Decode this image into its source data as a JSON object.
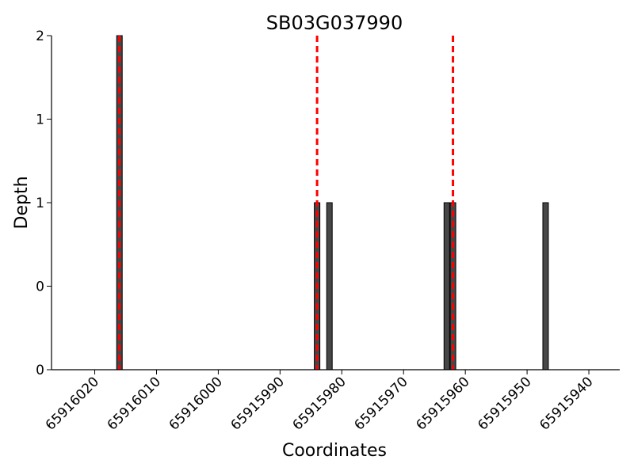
{
  "chart_data": {
    "type": "bar",
    "title": "SB03G037990",
    "xlabel": "Coordinates",
    "ylabel": "Depth",
    "x_reversed": true,
    "xlim": [
      65916027,
      65915935
    ],
    "ylim": [
      0,
      2
    ],
    "x_ticks": [
      65916020,
      65916010,
      65916000,
      65915990,
      65915980,
      65915970,
      65915960,
      65915950,
      65915940
    ],
    "y_ticks": [
      {
        "value": 0,
        "label": "0"
      },
      {
        "value": 0.5,
        "label": "0"
      },
      {
        "value": 1,
        "label": "1"
      },
      {
        "value": 1.5,
        "label": "1"
      },
      {
        "value": 2,
        "label": "2"
      }
    ],
    "series": [
      {
        "x": [
          65916016,
          65915984,
          65915982,
          65915963,
          65915962,
          65915947
        ],
        "values": [
          2,
          1,
          1,
          1,
          1,
          1
        ]
      }
    ],
    "reference_lines_x": [
      65916016,
      65915984,
      65915962
    ],
    "bar_color": "#474747",
    "bar_edge_color": "#000000",
    "reference_line_color": "#ff0000",
    "grid": false,
    "legend": "none"
  }
}
